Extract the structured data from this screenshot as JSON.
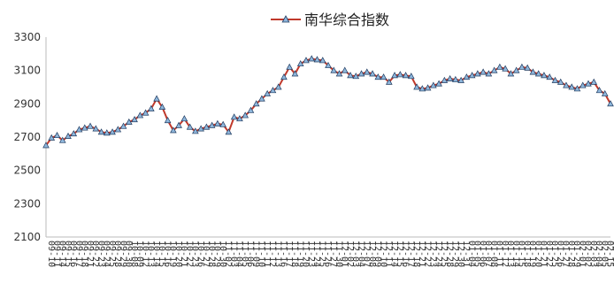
{
  "chart_data": {
    "type": "line",
    "legend_position": "top-center",
    "grid": false,
    "ylim": [
      2100,
      3300
    ],
    "yticks": [
      2100,
      2300,
      2500,
      2700,
      2900,
      3100,
      3300
    ],
    "series": [
      {
        "name": "南华综合指数",
        "line_color": "#c0392b",
        "marker_fill": "#8fb7dc",
        "marker_stroke": "#1f3a5f",
        "x": [
          "09-10",
          "09-11",
          "09-14",
          "09-15",
          "09-16",
          "09-17",
          "09-18",
          "09-21",
          "09-22",
          "09-23",
          "09-24",
          "09-25",
          "09-28",
          "09-29",
          "09-30",
          "10-08",
          "10-09",
          "10-12",
          "10-13",
          "10-14",
          "10-15",
          "10-16",
          "10-19",
          "10-20",
          "10-21",
          "10-22",
          "10-23",
          "10-26",
          "10-27",
          "10-28",
          "10-29",
          "10-30",
          "11-02",
          "11-03",
          "11-04",
          "11-05",
          "11-06",
          "11-09",
          "11-10",
          "11-11",
          "11-12",
          "11-13",
          "11-16",
          "11-17",
          "11-18",
          "11-19",
          "11-20",
          "11-23",
          "11-24",
          "11-25",
          "11-26",
          "11-27",
          "11-30",
          "12-01",
          "12-02",
          "12-03",
          "12-04",
          "12-07",
          "12-08",
          "12-09",
          "12-10",
          "12-11",
          "12-14",
          "12-15",
          "12-16",
          "12-17",
          "12-18",
          "12-21",
          "12-22",
          "12-23",
          "12-24",
          "12-25",
          "12-28",
          "12-29",
          "12-30",
          "12-31",
          "01-04",
          "01-05",
          "01-06",
          "01-07",
          "01-08",
          "01-11",
          "01-12",
          "01-13",
          "01-14",
          "01-15",
          "01-18",
          "01-19",
          "01-20",
          "01-21",
          "01-22",
          "01-25",
          "01-26",
          "01-27",
          "01-28",
          "01-29",
          "02-01",
          "02-02",
          "02-03",
          "02-04",
          "02-05",
          "02-15",
          "02-16"
        ],
        "values": [
          2650,
          2695,
          2710,
          2680,
          2705,
          2720,
          2745,
          2755,
          2765,
          2750,
          2730,
          2725,
          2730,
          2745,
          2765,
          2790,
          2805,
          2830,
          2845,
          2870,
          2930,
          2880,
          2800,
          2740,
          2770,
          2810,
          2760,
          2735,
          2750,
          2760,
          2770,
          2780,
          2775,
          2730,
          2820,
          2810,
          2830,
          2860,
          2900,
          2930,
          2960,
          2980,
          3000,
          3060,
          3120,
          3080,
          3140,
          3160,
          3170,
          3165,
          3160,
          3130,
          3100,
          3080,
          3100,
          3070,
          3065,
          3080,
          3090,
          3080,
          3060,
          3060,
          3030,
          3070,
          3075,
          3070,
          3065,
          3000,
          2990,
          2995,
          3010,
          3020,
          3040,
          3050,
          3045,
          3040,
          3060,
          3070,
          3080,
          3090,
          3080,
          3100,
          3120,
          3110,
          3080,
          3100,
          3120,
          3115,
          3090,
          3080,
          3070,
          3060,
          3040,
          3030,
          3010,
          3000,
          2990,
          3010,
          3020,
          3030,
          2980,
          2960,
          2900
        ]
      }
    ]
  }
}
